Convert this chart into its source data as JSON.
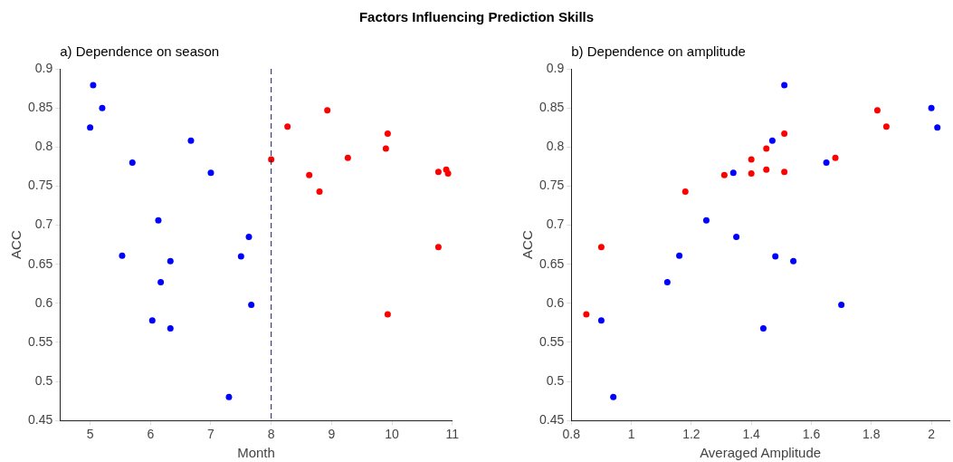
{
  "chart_data": [
    {
      "type": "scatter",
      "title": "Factors Influencing Prediction Skills",
      "subtitle": "a) Dependence on season",
      "xlabel": "Month",
      "ylabel": "ACC",
      "xlim": [
        4.5,
        11
      ],
      "xticks": [
        5,
        6,
        7,
        8,
        9,
        10,
        11
      ],
      "ylim": [
        0.45,
        0.9
      ],
      "yticks": [
        0.45,
        0.5,
        0.55,
        0.6,
        0.65,
        0.7,
        0.75,
        0.8,
        0.85,
        0.9
      ],
      "grid": false,
      "legend": false,
      "marker": "circle",
      "ref_lines": [
        {
          "axis": "x",
          "value": 8,
          "color": "#1a1a66",
          "line_style": "dashed"
        }
      ],
      "series": [
        {
          "color": "#0000ff",
          "x": [
            5.05,
            5.2,
            5.0,
            6.67,
            5.7,
            7.0,
            6.13,
            7.63,
            5.53,
            7.5,
            6.33,
            6.17,
            7.67,
            6.03,
            6.33,
            7.3
          ],
          "values": [
            0.879,
            0.85,
            0.825,
            0.808,
            0.78,
            0.767,
            0.706,
            0.685,
            0.661,
            0.66,
            0.654,
            0.627,
            0.598,
            0.578,
            0.568,
            0.48
          ]
        },
        {
          "color": "#ff0000",
          "x": [
            8.0,
            8.27,
            8.93,
            9.27,
            9.9,
            9.93,
            8.63,
            8.8,
            10.77,
            10.9,
            10.93,
            10.77,
            9.93
          ],
          "values": [
            0.784,
            0.826,
            0.847,
            0.786,
            0.798,
            0.817,
            0.764,
            0.743,
            0.768,
            0.771,
            0.766,
            0.672,
            0.586
          ]
        }
      ]
    },
    {
      "type": "scatter",
      "subtitle": "b) Dependence on amplitude",
      "xlabel": "Averaged Amplitude",
      "ylabel": "ACC",
      "xlim": [
        0.8,
        2.06
      ],
      "xticks": [
        0.8,
        1,
        1.2,
        1.4,
        1.6,
        1.8,
        2
      ],
      "ylim": [
        0.45,
        0.9
      ],
      "yticks": [
        0.45,
        0.5,
        0.55,
        0.6,
        0.65,
        0.7,
        0.75,
        0.8,
        0.85,
        0.9
      ],
      "grid": false,
      "legend": false,
      "marker": "circle",
      "series": [
        {
          "color": "#0000ff",
          "x": [
            0.9,
            0.94,
            1.12,
            1.16,
            1.25,
            1.34,
            1.35,
            1.51,
            1.47,
            1.65,
            2.0,
            2.02,
            1.48,
            1.54,
            1.7,
            1.44
          ],
          "values": [
            0.578,
            0.48,
            0.627,
            0.661,
            0.706,
            0.767,
            0.685,
            0.879,
            0.808,
            0.78,
            0.85,
            0.825,
            0.66,
            0.654,
            0.598,
            0.568
          ]
        },
        {
          "color": "#ff0000",
          "x": [
            0.85,
            0.9,
            1.18,
            1.31,
            1.4,
            1.4,
            1.45,
            1.51,
            1.45,
            1.51,
            1.68,
            1.82,
            1.85
          ],
          "values": [
            0.586,
            0.672,
            0.743,
            0.764,
            0.784,
            0.766,
            0.798,
            0.817,
            0.771,
            0.768,
            0.786,
            0.847,
            0.826
          ]
        }
      ]
    }
  ]
}
